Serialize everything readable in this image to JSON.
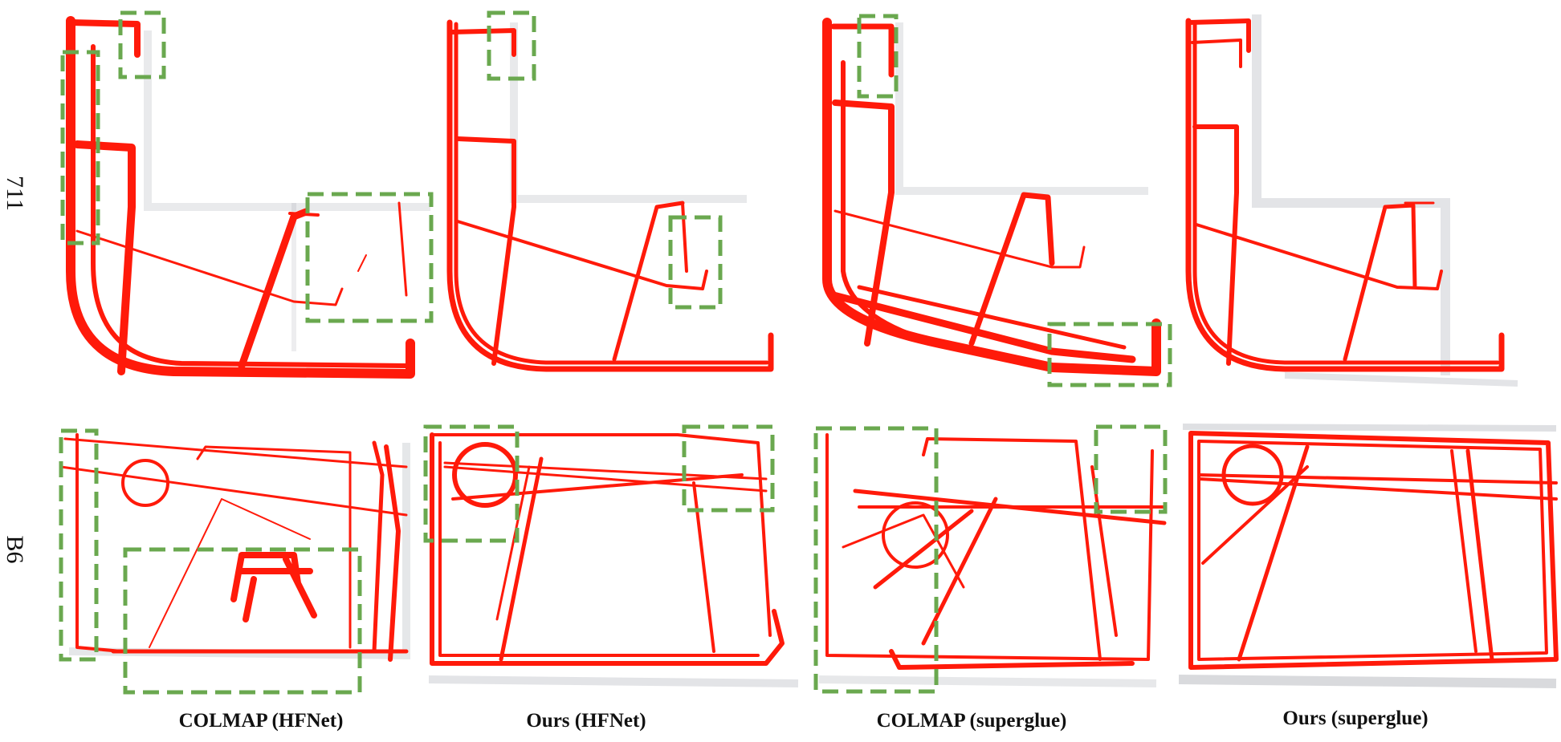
{
  "rows": [
    {
      "label": "711"
    },
    {
      "label": "B6"
    }
  ],
  "columns": [
    {
      "label": "COLMAP (HFNet)"
    },
    {
      "label": "Ours (HFNet)"
    },
    {
      "label": "COLMAP (superglue)"
    },
    {
      "label": "Ours (superglue)"
    }
  ],
  "colors": {
    "trajectory": "#ff1a0a",
    "highlight_box": "#6aa84f",
    "point_cloud": "#1c2433"
  }
}
